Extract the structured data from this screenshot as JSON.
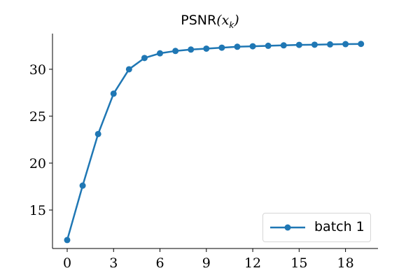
{
  "chart_data": {
    "type": "line",
    "title": "PSNR(x_k)",
    "xlabel": "",
    "ylabel": "",
    "x": [
      0,
      1,
      2,
      3,
      4,
      5,
      6,
      7,
      8,
      9,
      10,
      11,
      12,
      13,
      14,
      15,
      16,
      17,
      18,
      19
    ],
    "series": [
      {
        "name": "batch 1",
        "color": "#1f77b4",
        "marker": "circle",
        "values": [
          11.8,
          17.6,
          23.1,
          27.4,
          30.0,
          31.2,
          31.7,
          31.95,
          32.1,
          32.2,
          32.3,
          32.4,
          32.45,
          32.5,
          32.55,
          32.6,
          32.62,
          32.65,
          32.68,
          32.7
        ]
      }
    ],
    "xticks": [
      0,
      3,
      6,
      9,
      12,
      15,
      18
    ],
    "yticks": [
      15,
      20,
      25,
      30
    ],
    "xlim": [
      -0.95,
      20.1
    ],
    "ylim": [
      10.9,
      33.8
    ],
    "grid": false,
    "legend_position": "lower right"
  },
  "title": {
    "prefix": "PSNR",
    "math": "(x",
    "sub": "k",
    "suffix": ")"
  },
  "legend": {
    "label": "batch 1"
  }
}
